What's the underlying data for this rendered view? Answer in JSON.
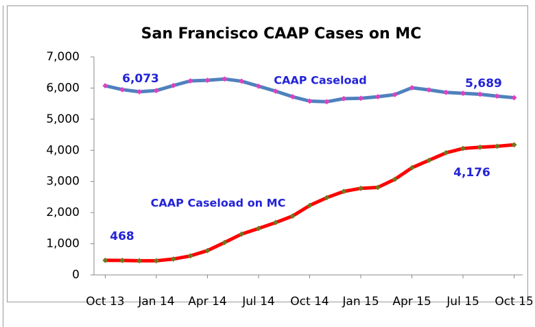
{
  "chart_data": {
    "type": "line",
    "title": "San Francisco CAAP Cases on MC",
    "categories": [
      "Oct 13",
      null,
      null,
      "Jan 14",
      null,
      null,
      "Apr 14",
      null,
      null,
      "Jul 14",
      null,
      null,
      "Oct 14",
      null,
      null,
      "Jan 15",
      null,
      null,
      "Apr 15",
      null,
      null,
      "Jul 15",
      null,
      null,
      "Oct 15"
    ],
    "series": [
      {
        "name": "CAAP Caseload",
        "color": "#4f81bd",
        "marker_color": "#e040c0",
        "values": [
          6073,
          5950,
          5880,
          5920,
          6080,
          6230,
          6250,
          6290,
          6220,
          6060,
          5900,
          5720,
          5580,
          5560,
          5660,
          5670,
          5720,
          5790,
          6010,
          5940,
          5860,
          5830,
          5800,
          5740,
          5689
        ],
        "value_labels": [
          "6,073",
          null,
          null,
          null,
          null,
          null,
          null,
          null,
          null,
          null,
          null,
          null,
          null,
          null,
          null,
          null,
          null,
          null,
          null,
          null,
          null,
          null,
          null,
          null,
          "5,689"
        ]
      },
      {
        "name": "CAAP Caseload on MC",
        "color": "#ff0000",
        "marker_color": "#6b7a1e",
        "values": [
          468,
          465,
          455,
          455,
          510,
          610,
          780,
          1040,
          1310,
          1490,
          1680,
          1890,
          2230,
          2480,
          2680,
          2780,
          2810,
          3070,
          3440,
          3680,
          3920,
          4060,
          4100,
          4130,
          4176
        ],
        "value_labels": [
          "468",
          null,
          null,
          null,
          null,
          null,
          null,
          null,
          null,
          null,
          null,
          null,
          null,
          null,
          null,
          null,
          null,
          null,
          null,
          null,
          null,
          null,
          null,
          null,
          "4,176"
        ]
      }
    ],
    "ylim": [
      0,
      7000
    ],
    "yticks": [
      0,
      {
        "value": 1000,
        "label": "1,000"
      },
      {
        "value": 2000,
        "label": "2,000"
      },
      {
        "value": 3000,
        "label": "3,000"
      },
      {
        "value": 4000,
        "label": "4,000"
      },
      {
        "value": 5000,
        "label": "5,000"
      },
      {
        "value": 6000,
        "label": "6,000"
      },
      {
        "value": 7000,
        "label": "7,000"
      }
    ],
    "grid": false
  }
}
